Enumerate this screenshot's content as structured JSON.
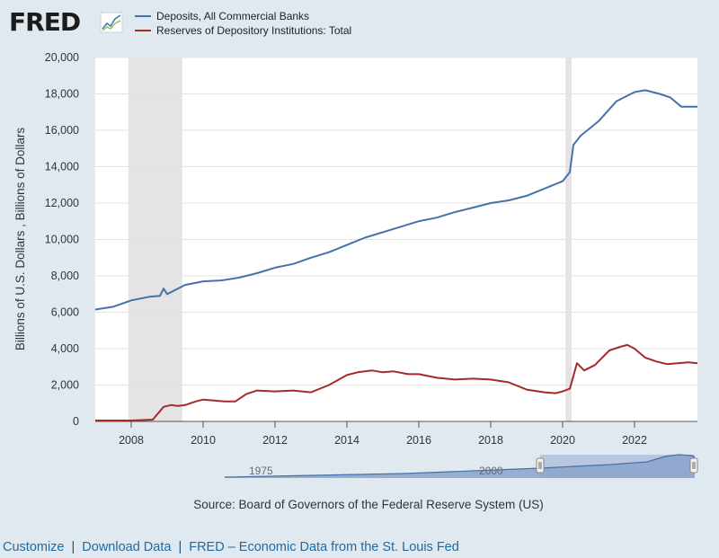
{
  "logo": {
    "text": "FRED"
  },
  "chart_data": {
    "type": "line",
    "title": "",
    "xlabel": "",
    "ylabel": "Billions of U.S. Dollars , Billions of Dollars",
    "xlim": [
      2007.0,
      2023.75
    ],
    "ylim": [
      0,
      20000
    ],
    "x_ticks": [
      2008,
      2010,
      2012,
      2014,
      2016,
      2018,
      2020,
      2022
    ],
    "x_tick_labels": [
      "2008",
      "2010",
      "2012",
      "2014",
      "2016",
      "2018",
      "2020",
      "2022"
    ],
    "y_ticks": [
      0,
      2000,
      4000,
      6000,
      8000,
      10000,
      12000,
      14000,
      16000,
      18000,
      20000
    ],
    "y_tick_labels": [
      "0",
      "2,000",
      "4,000",
      "6,000",
      "8,000",
      "10,000",
      "12,000",
      "14,000",
      "16,000",
      "18,000",
      "20,000"
    ],
    "grid": true,
    "legend_position": "top",
    "recessions": [
      [
        2007.92,
        2009.42
      ],
      [
        2020.08,
        2020.25
      ]
    ],
    "series": [
      {
        "name": "Deposits, All Commercial Banks",
        "color": "#4572a7",
        "x": [
          2007.0,
          2007.5,
          2008.0,
          2008.5,
          2008.8,
          2008.9,
          2009.0,
          2009.5,
          2010.0,
          2010.5,
          2011.0,
          2011.5,
          2012.0,
          2012.5,
          2013.0,
          2013.5,
          2014.0,
          2014.5,
          2015.0,
          2015.5,
          2016.0,
          2016.5,
          2017.0,
          2017.5,
          2018.0,
          2018.5,
          2019.0,
          2019.5,
          2020.0,
          2020.2,
          2020.3,
          2020.5,
          2021.0,
          2021.5,
          2022.0,
          2022.3,
          2022.7,
          2023.0,
          2023.3,
          2023.75
        ],
        "y": [
          6150,
          6300,
          6650,
          6850,
          6900,
          7300,
          7000,
          7500,
          7700,
          7750,
          7900,
          8150,
          8450,
          8650,
          9000,
          9300,
          9700,
          10100,
          10400,
          10700,
          11000,
          11200,
          11500,
          11750,
          12000,
          12150,
          12400,
          12800,
          13200,
          13700,
          15200,
          15700,
          16500,
          17600,
          18100,
          18200,
          18000,
          17800,
          17300,
          17300
        ]
      },
      {
        "name": "Reserves of Depository Institutions: Total",
        "color": "#a52a2a",
        "x": [
          2007.0,
          2007.5,
          2008.0,
          2008.6,
          2008.9,
          2009.1,
          2009.3,
          2009.5,
          2009.8,
          2010.0,
          2010.3,
          2010.6,
          2010.9,
          2011.2,
          2011.5,
          2012.0,
          2012.5,
          2013.0,
          2013.5,
          2014.0,
          2014.3,
          2014.7,
          2015.0,
          2015.3,
          2015.7,
          2016.0,
          2016.5,
          2017.0,
          2017.5,
          2018.0,
          2018.5,
          2019.0,
          2019.5,
          2019.8,
          2020.0,
          2020.2,
          2020.4,
          2020.6,
          2020.9,
          2021.3,
          2021.6,
          2021.8,
          2022.0,
          2022.3,
          2022.6,
          2022.9,
          2023.2,
          2023.5,
          2023.75
        ],
        "y": [
          50,
          50,
          50,
          100,
          800,
          900,
          850,
          900,
          1100,
          1200,
          1150,
          1100,
          1100,
          1500,
          1700,
          1650,
          1700,
          1600,
          2000,
          2550,
          2700,
          2800,
          2700,
          2750,
          2600,
          2600,
          2400,
          2300,
          2350,
          2300,
          2150,
          1750,
          1600,
          1550,
          1650,
          1800,
          3200,
          2800,
          3100,
          3900,
          4100,
          4200,
          4000,
          3500,
          3300,
          3150,
          3200,
          3250,
          3200
        ]
      }
    ]
  },
  "navigator": {
    "labels": [
      "1975",
      "2000"
    ]
  },
  "source": "Source: Board of Governors of the Federal Reserve System (US)",
  "footer": {
    "links": [
      "Customize",
      "Download Data",
      "FRED – Economic Data from the St. Louis Fed"
    ],
    "separator": "|"
  }
}
